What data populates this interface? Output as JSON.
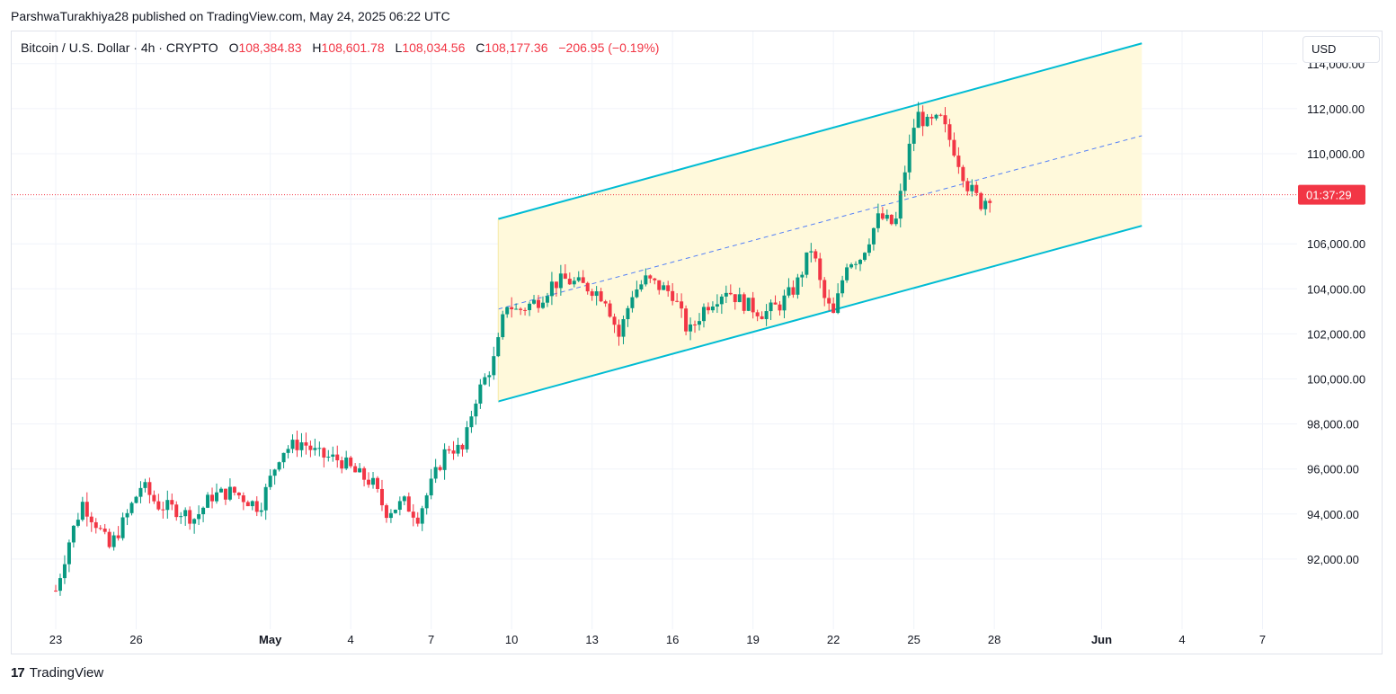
{
  "header": {
    "credit": "ParshwaTurakhiya28 published on TradingView.com, May 24, 2025 06:22 UTC"
  },
  "legend": {
    "symbol": "Bitcoin / U.S. Dollar · 4h · CRYPTO",
    "open_label": "O",
    "open": "108,384.83",
    "high_label": "H",
    "high": "108,601.78",
    "low_label": "L",
    "low": "108,034.56",
    "close_label": "C",
    "close": "108,177.36",
    "change": "−206.95 (−0.19%)"
  },
  "currency": "USD",
  "footer": {
    "brand": "TradingView"
  },
  "colors": {
    "up": "#089981",
    "down": "#f23645",
    "channel": "#00bcd4",
    "fill": "#fff9db",
    "midline": "#2962ff",
    "price_line": "#f23645"
  },
  "chart_data": {
    "type": "candlestick",
    "timeframe": "4h",
    "x_tick_labels": [
      "23",
      "26",
      "May",
      "4",
      "7",
      "10",
      "13",
      "16",
      "19",
      "22",
      "25",
      "28",
      "Jun",
      "4",
      "7"
    ],
    "y_tick_labels": [
      "92,000.00",
      "94,000.00",
      "96,000.00",
      "98,000.00",
      "100,000.00",
      "102,000.00",
      "104,000.00",
      "106,000.00",
      "110,000.00",
      "112,000.00",
      "114,000.00"
    ],
    "ylim": [
      89800,
      116500
    ],
    "xlim_days": [
      -1.0,
      46.0
    ],
    "last_price": 108177.36,
    "countdown": "01:37:29",
    "price_anchors": [
      [
        0.0,
        90600
      ],
      [
        0.5,
        92800
      ],
      [
        1.0,
        94500
      ],
      [
        1.5,
        93600
      ],
      [
        2.0,
        92500
      ],
      [
        2.6,
        93800
      ],
      [
        3.2,
        95300
      ],
      [
        3.8,
        94400
      ],
      [
        4.5,
        94200
      ],
      [
        5.2,
        93800
      ],
      [
        5.8,
        94800
      ],
      [
        6.6,
        95000
      ],
      [
        7.6,
        94300
      ],
      [
        8.4,
        96800
      ],
      [
        9.2,
        97200
      ],
      [
        9.8,
        96600
      ],
      [
        10.6,
        96400
      ],
      [
        11.2,
        95800
      ],
      [
        11.8,
        95400
      ],
      [
        12.3,
        94100
      ],
      [
        13.0,
        94500
      ],
      [
        13.5,
        93900
      ],
      [
        14.0,
        95300
      ],
      [
        14.6,
        97000
      ],
      [
        15.2,
        96800
      ],
      [
        15.6,
        99000
      ],
      [
        16.4,
        101000
      ],
      [
        16.8,
        103400
      ],
      [
        17.2,
        103000
      ],
      [
        18.0,
        103500
      ],
      [
        18.5,
        104200
      ],
      [
        19.0,
        104400
      ],
      [
        20.0,
        104000
      ],
      [
        20.5,
        103600
      ],
      [
        21.0,
        101900
      ],
      [
        21.5,
        103800
      ],
      [
        22.0,
        104400
      ],
      [
        23.0,
        103800
      ],
      [
        23.6,
        102000
      ],
      [
        24.2,
        103200
      ],
      [
        25.0,
        104000
      ],
      [
        25.6,
        103400
      ],
      [
        26.4,
        102900
      ],
      [
        27.0,
        103300
      ],
      [
        27.6,
        104100
      ],
      [
        28.2,
        105900
      ],
      [
        28.6,
        103700
      ],
      [
        29.0,
        102800
      ],
      [
        29.5,
        105200
      ],
      [
        30.0,
        105400
      ],
      [
        30.7,
        107200
      ],
      [
        31.3,
        106800
      ],
      [
        31.7,
        109500
      ],
      [
        32.1,
        111800
      ],
      [
        32.5,
        111300
      ],
      [
        33.0,
        111500
      ],
      [
        33.5,
        110200
      ],
      [
        34.0,
        108600
      ],
      [
        34.5,
        107800
      ],
      [
        34.85,
        108177
      ]
    ],
    "upper_channel": {
      "start": [
        16.5,
        107100
      ],
      "end": [
        40.5,
        114900
      ]
    },
    "lower_channel": {
      "start": [
        16.5,
        99000
      ],
      "end": [
        40.5,
        106800
      ]
    },
    "mid_channel": {
      "start": [
        16.5,
        103100
      ],
      "end": [
        40.5,
        110800
      ]
    }
  }
}
